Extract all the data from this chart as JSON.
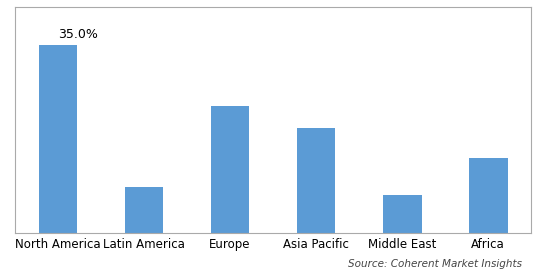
{
  "categories": [
    "North America",
    "Latin America",
    "Europe",
    "Asia Pacific",
    "Middle East",
    "Africa"
  ],
  "values": [
    35.0,
    8.5,
    23.5,
    19.5,
    7.0,
    14.0
  ],
  "bar_color": "#5B9BD5",
  "annotation_text": "35.0%",
  "annotation_index": 0,
  "ylim": [
    0,
    42
  ],
  "source_text": "Source: Coherent Market Insights",
  "background_color": "#FFFFFF",
  "grid_color": "#D9D9D9",
  "label_fontsize": 8.5,
  "annotation_fontsize": 9,
  "source_fontsize": 7.5,
  "bar_width": 0.45,
  "border_color": "#AAAAAA"
}
